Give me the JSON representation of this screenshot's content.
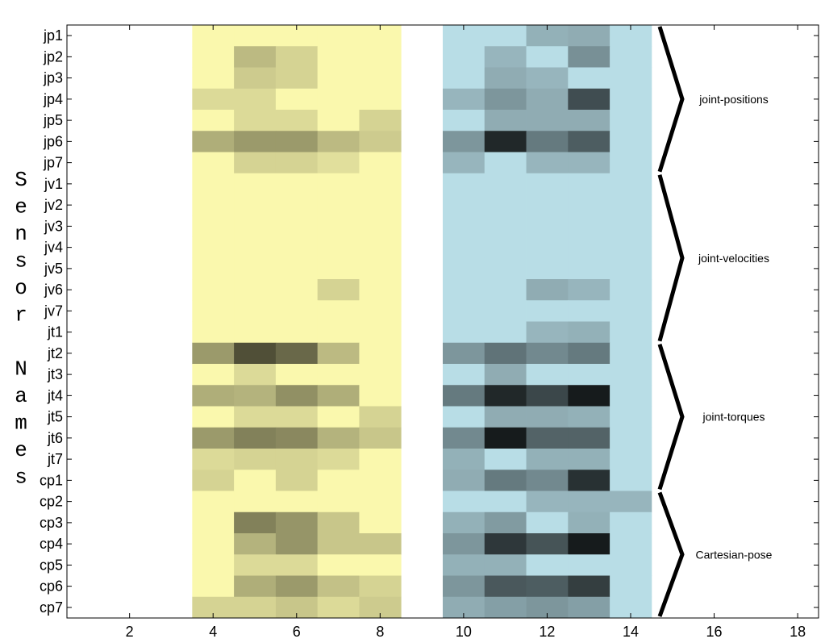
{
  "chart_data": {
    "type": "heatmap",
    "ylabel": "Sensor Names",
    "xlim": [
      0.5,
      18.5
    ],
    "xticks": [
      2,
      4,
      6,
      8,
      10,
      12,
      14,
      16,
      18
    ],
    "rows": [
      "jp1",
      "jp2",
      "jp3",
      "jp4",
      "jp5",
      "jp6",
      "jp7",
      "jv1",
      "jv2",
      "jv3",
      "jv4",
      "jv5",
      "jv6",
      "jv7",
      "jt1",
      "jt2",
      "jt3",
      "jt4",
      "jt5",
      "jt6",
      "jt7",
      "cp1",
      "cp2",
      "cp3",
      "cp4",
      "cp5",
      "cp6",
      "cp7"
    ],
    "blocks": [
      {
        "x_start": 4,
        "color": "#faf8ad",
        "values": [
          [
            0,
            0,
            0,
            0,
            0
          ],
          [
            0,
            0.25,
            0.15,
            0,
            0
          ],
          [
            0,
            0.18,
            0.15,
            0,
            0
          ],
          [
            0.12,
            0.12,
            0,
            0,
            0
          ],
          [
            0,
            0.12,
            0.12,
            0,
            0.15
          ],
          [
            0.3,
            0.38,
            0.38,
            0.25,
            0.18
          ],
          [
            0,
            0.15,
            0.15,
            0.1,
            0
          ],
          [
            0,
            0,
            0,
            0,
            0
          ],
          [
            0,
            0,
            0,
            0,
            0
          ],
          [
            0,
            0,
            0,
            0,
            0
          ],
          [
            0,
            0,
            0,
            0,
            0
          ],
          [
            0,
            0,
            0,
            0,
            0
          ],
          [
            0,
            0,
            0,
            0.15,
            0
          ],
          [
            0,
            0,
            0,
            0,
            0
          ],
          [
            0,
            0,
            0,
            0,
            0
          ],
          [
            0.38,
            0.68,
            0.58,
            0.25,
            0
          ],
          [
            0,
            0.12,
            0,
            0,
            0
          ],
          [
            0.3,
            0.28,
            0.42,
            0.3,
            0
          ],
          [
            0,
            0.12,
            0.12,
            0,
            0.15
          ],
          [
            0.38,
            0.48,
            0.45,
            0.28,
            0.2
          ],
          [
            0.12,
            0.15,
            0.15,
            0.12,
            0
          ],
          [
            0.15,
            0,
            0.15,
            0,
            0
          ],
          [
            0,
            0,
            0,
            0,
            0
          ],
          [
            0,
            0.48,
            0.4,
            0.2,
            0
          ],
          [
            0,
            0.28,
            0.4,
            0.2,
            0.2
          ],
          [
            0,
            0.12,
            0.12,
            0,
            0
          ],
          [
            0,
            0.3,
            0.38,
            0.22,
            0.15
          ],
          [
            0.15,
            0.15,
            0.2,
            0.12,
            0.18
          ]
        ]
      },
      {
        "x_start": 10,
        "color": "#b8dde6",
        "values": [
          [
            0,
            0,
            0.2,
            0.22,
            0
          ],
          [
            0,
            0.18,
            0,
            0.35,
            0
          ],
          [
            0,
            0.22,
            0.18,
            0,
            0
          ],
          [
            0.18,
            0.32,
            0.22,
            0.65,
            0
          ],
          [
            0,
            0.22,
            0.22,
            0.22,
            0
          ],
          [
            0.32,
            0.82,
            0.45,
            0.58,
            0
          ],
          [
            0.18,
            0,
            0.18,
            0.18,
            0
          ],
          [
            0,
            0,
            0,
            0,
            0
          ],
          [
            0,
            0,
            0,
            0,
            0
          ],
          [
            0,
            0,
            0,
            0,
            0
          ],
          [
            0,
            0,
            0,
            0,
            0
          ],
          [
            0,
            0,
            0,
            0,
            0
          ],
          [
            0,
            0,
            0.22,
            0.18,
            0
          ],
          [
            0,
            0,
            0,
            0,
            0
          ],
          [
            0,
            0,
            0.18,
            0.2,
            0
          ],
          [
            0.32,
            0.48,
            0.38,
            0.45,
            0
          ],
          [
            0,
            0.22,
            0,
            0,
            0
          ],
          [
            0.45,
            0.82,
            0.68,
            0.88,
            0
          ],
          [
            0,
            0.22,
            0.22,
            0.2,
            0
          ],
          [
            0.38,
            0.88,
            0.55,
            0.55,
            0
          ],
          [
            0.2,
            0,
            0.2,
            0.2,
            0
          ],
          [
            0.22,
            0.45,
            0.38,
            0.78,
            0
          ],
          [
            0,
            0,
            0.18,
            0.18,
            0.18
          ],
          [
            0.2,
            0.3,
            0,
            0.2,
            0
          ],
          [
            0.32,
            0.75,
            0.62,
            0.88,
            0
          ],
          [
            0.2,
            0.2,
            0,
            0,
            0
          ],
          [
            0.32,
            0.6,
            0.58,
            0.72,
            0
          ],
          [
            0.22,
            0.28,
            0.32,
            0.28,
            0
          ]
        ]
      }
    ],
    "groups": [
      {
        "label": "joint-positions",
        "from": "jp1",
        "to": "jp7"
      },
      {
        "label": "joint-velocities",
        "from": "jv1",
        "to": "jt1"
      },
      {
        "label": "joint-torques",
        "from": "jt2",
        "to": "cp1"
      },
      {
        "label": "Cartesian-pose",
        "from": "cp2",
        "to": "cp7"
      }
    ]
  }
}
